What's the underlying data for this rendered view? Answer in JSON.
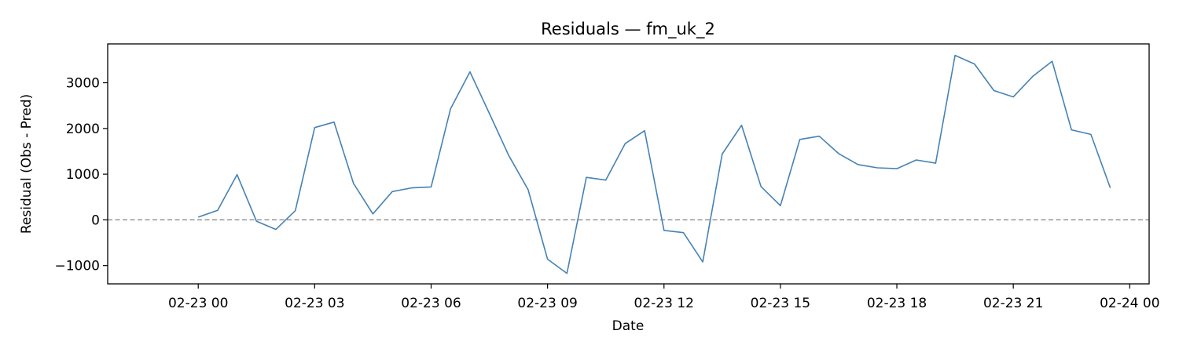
{
  "chart_data": {
    "type": "line",
    "title": "Residuals — fm_uk_2",
    "xlabel": "Date",
    "ylabel": "Residual (Obs - Pred)",
    "xlim": [
      "2023-02-22T21:40",
      "2023-02-24T00:30"
    ],
    "ylim": [
      -1400,
      3850
    ],
    "x_ticks": [
      {
        "label": "02-23 00",
        "value": "2023-02-23T00:00"
      },
      {
        "label": "02-23 03",
        "value": "2023-02-23T03:00"
      },
      {
        "label": "02-23 06",
        "value": "2023-02-23T06:00"
      },
      {
        "label": "02-23 09",
        "value": "2023-02-23T09:00"
      },
      {
        "label": "02-23 12",
        "value": "2023-02-23T12:00"
      },
      {
        "label": "02-23 15",
        "value": "2023-02-23T15:00"
      },
      {
        "label": "02-23 18",
        "value": "2023-02-23T18:00"
      },
      {
        "label": "02-23 21",
        "value": "2023-02-23T21:00"
      },
      {
        "label": "02-24 00",
        "value": "2023-02-24T00:00"
      }
    ],
    "y_ticks": [
      {
        "label": "−1000",
        "value": -1000
      },
      {
        "label": "0",
        "value": 0
      },
      {
        "label": "1000",
        "value": 1000
      },
      {
        "label": "2000",
        "value": 2000
      },
      {
        "label": "3000",
        "value": 3000
      }
    ],
    "reference_line": {
      "y": 0,
      "style": "dashed",
      "color": "#808080"
    },
    "grid": false,
    "line_color": "#4682b4",
    "series": [
      {
        "x": [
          "2023-02-23T00:00",
          "2023-02-23T00:30",
          "2023-02-23T01:00",
          "2023-02-23T01:30",
          "2023-02-23T02:00",
          "2023-02-23T02:30",
          "2023-02-23T03:00",
          "2023-02-23T03:30",
          "2023-02-23T04:00",
          "2023-02-23T04:30",
          "2023-02-23T05:00",
          "2023-02-23T05:30",
          "2023-02-23T06:00",
          "2023-02-23T06:30",
          "2023-02-23T07:00",
          "2023-02-23T07:30",
          "2023-02-23T08:00",
          "2023-02-23T08:30",
          "2023-02-23T09:00",
          "2023-02-23T09:30",
          "2023-02-23T10:00",
          "2023-02-23T10:30",
          "2023-02-23T11:00",
          "2023-02-23T11:30",
          "2023-02-23T12:00",
          "2023-02-23T12:30",
          "2023-02-23T13:00",
          "2023-02-23T13:30",
          "2023-02-23T14:00",
          "2023-02-23T14:30",
          "2023-02-23T15:00",
          "2023-02-23T15:30",
          "2023-02-23T16:00",
          "2023-02-23T16:30",
          "2023-02-23T17:00",
          "2023-02-23T17:30",
          "2023-02-23T18:00",
          "2023-02-23T18:30",
          "2023-02-23T19:00",
          "2023-02-23T19:30",
          "2023-02-23T20:00",
          "2023-02-23T20:30",
          "2023-02-23T21:00",
          "2023-02-23T21:30",
          "2023-02-23T22:00",
          "2023-02-23T22:30",
          "2023-02-23T23:00",
          "2023-02-23T23:30"
        ],
        "y": [
          60,
          210,
          990,
          -30,
          -210,
          200,
          2020,
          2140,
          800,
          130,
          620,
          700,
          720,
          2430,
          3240,
          2330,
          1410,
          660,
          -860,
          -1170,
          930,
          870,
          1670,
          1950,
          -230,
          -280,
          -920,
          1440,
          2070,
          730,
          310,
          1760,
          1830,
          1450,
          1210,
          1140,
          1120,
          1310,
          1240,
          3600,
          3410,
          2830,
          2690,
          3140,
          3470,
          1970,
          1870,
          700
        ]
      }
    ]
  }
}
